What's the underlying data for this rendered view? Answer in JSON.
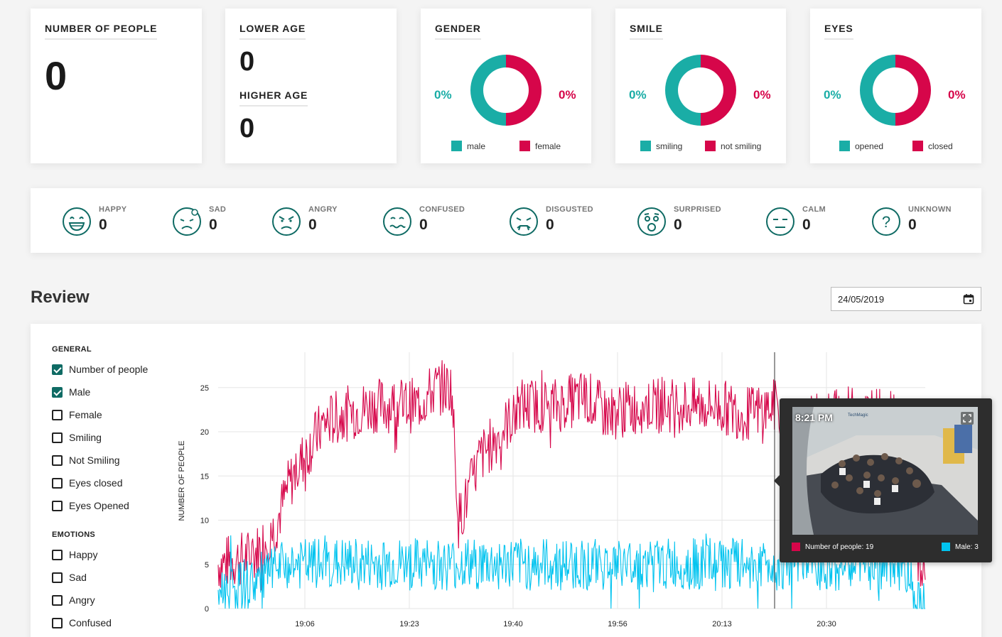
{
  "stats": {
    "people": {
      "title": "NUMBER OF PEOPLE",
      "value": "0"
    },
    "age": {
      "lower_title": "LOWER AGE",
      "lower_value": "0",
      "higher_title": "HIGHER AGE",
      "higher_value": "0"
    },
    "gender": {
      "title": "GENDER",
      "left_pct": "0%",
      "right_pct": "0%",
      "legend_a": "male",
      "legend_b": "female"
    },
    "smile": {
      "title": "SMILE",
      "left_pct": "0%",
      "right_pct": "0%",
      "legend_a": "smiling",
      "legend_b": "not smiling"
    },
    "eyes": {
      "title": "EYES",
      "left_pct": "0%",
      "right_pct": "0%",
      "legend_a": "opened",
      "legend_b": "closed"
    }
  },
  "emotions_bar": [
    {
      "label": "HAPPY",
      "value": "0",
      "icon": "happy-face-icon"
    },
    {
      "label": "SAD",
      "value": "0",
      "icon": "sad-face-icon"
    },
    {
      "label": "ANGRY",
      "value": "0",
      "icon": "angry-face-icon"
    },
    {
      "label": "CONFUSED",
      "value": "0",
      "icon": "confused-face-icon"
    },
    {
      "label": "DISGUSTED",
      "value": "0",
      "icon": "disgusted-face-icon"
    },
    {
      "label": "SURPRISED",
      "value": "0",
      "icon": "surprised-face-icon"
    },
    {
      "label": "CALM",
      "value": "0",
      "icon": "calm-face-icon"
    },
    {
      "label": "UNKNOWN",
      "value": "0",
      "icon": "question-icon"
    }
  ],
  "review": {
    "title": "Review",
    "date": "24/05/2019",
    "general_label": "GENERAL",
    "general_filters": [
      {
        "label": "Number of people",
        "checked": true
      },
      {
        "label": "Male",
        "checked": true
      },
      {
        "label": "Female",
        "checked": false
      },
      {
        "label": "Smiling",
        "checked": false
      },
      {
        "label": "Not Smiling",
        "checked": false
      },
      {
        "label": "Eyes closed",
        "checked": false
      },
      {
        "label": "Eyes Opened",
        "checked": false
      }
    ],
    "emotions_label": "EMOTIONS",
    "emotion_filters": [
      {
        "label": "Happy",
        "checked": false
      },
      {
        "label": "Sad",
        "checked": false
      },
      {
        "label": "Angry",
        "checked": false
      },
      {
        "label": "Confused",
        "checked": false
      }
    ]
  },
  "chart_data": {
    "type": "line",
    "ylabel": "NUMBER OF PEOPLE",
    "xlabel": "",
    "x_tick_labels": [
      "19:06",
      "19:23",
      "19:40",
      "19:56",
      "20:13",
      "20:30"
    ],
    "y_ticks": [
      0,
      5,
      10,
      15,
      20,
      25
    ],
    "ylim": [
      0,
      29
    ],
    "series": [
      {
        "name": "Number of people",
        "color": "#d6064a",
        "keyframes": [
          [
            0,
            5
          ],
          [
            0.05,
            6
          ],
          [
            0.08,
            9
          ],
          [
            0.1,
            14
          ],
          [
            0.12,
            17
          ],
          [
            0.15,
            21
          ],
          [
            0.18,
            22
          ],
          [
            0.22,
            23
          ],
          [
            0.28,
            23
          ],
          [
            0.31,
            25
          ],
          [
            0.33,
            25
          ],
          [
            0.34,
            10
          ],
          [
            0.35,
            12
          ],
          [
            0.37,
            17
          ],
          [
            0.4,
            20
          ],
          [
            0.43,
            23
          ],
          [
            0.48,
            23
          ],
          [
            0.52,
            24
          ],
          [
            0.55,
            22
          ],
          [
            0.6,
            23
          ],
          [
            0.65,
            23
          ],
          [
            0.7,
            23
          ],
          [
            0.75,
            22
          ],
          [
            0.79,
            23
          ],
          [
            0.8,
            20
          ],
          [
            0.84,
            21
          ],
          [
            0.88,
            22
          ],
          [
            0.93,
            22
          ],
          [
            0.96,
            22
          ],
          [
            0.98,
            18
          ],
          [
            0.99,
            5
          ],
          [
            1.0,
            3
          ]
        ],
        "noise": 3.2
      },
      {
        "name": "Male",
        "color": "#00c3ef",
        "keyframes": [
          [
            0,
            2
          ],
          [
            0.05,
            3
          ],
          [
            0.1,
            5
          ],
          [
            0.2,
            5
          ],
          [
            0.3,
            5
          ],
          [
            0.4,
            5
          ],
          [
            0.5,
            5
          ],
          [
            0.6,
            5
          ],
          [
            0.7,
            5
          ],
          [
            0.8,
            5
          ],
          [
            0.9,
            5
          ],
          [
            0.97,
            5
          ],
          [
            0.99,
            1
          ],
          [
            1.0,
            1
          ]
        ],
        "noise": 3.0
      }
    ]
  },
  "tooltip": {
    "time": "8:21 PM",
    "brand": "TechMagic",
    "series1_label": "Number of people: 19",
    "series2_label": "Male: 3",
    "series1_color": "#d6064a",
    "series2_color": "#00c3ef"
  },
  "colors": {
    "teal": "#1aada6",
    "red": "#d6064a",
    "cyan": "#00c3ef",
    "dark_teal": "#0f6b64"
  }
}
